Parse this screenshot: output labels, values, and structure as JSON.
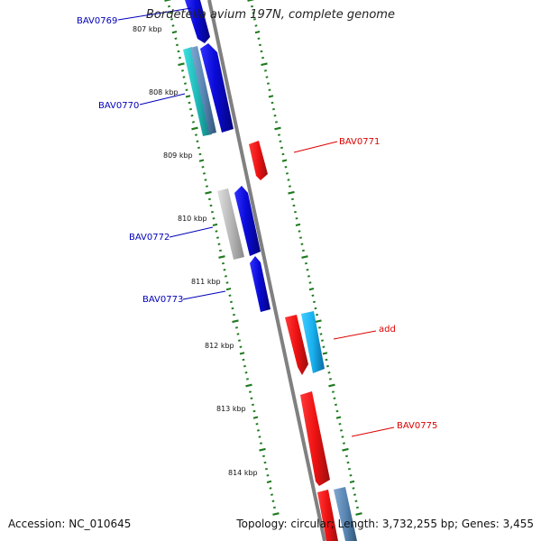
{
  "title": "Bordetella avium 197N, complete genome",
  "footer": {
    "accession": "Accession: NC_010645",
    "summary": "Topology: circular; Length: 3,732,255 bp; Genes: 3,455"
  },
  "colors": {
    "backbone": "#808080",
    "ticks": "#1f7a1f",
    "blue_gene": "#0a0ad8",
    "red_gene": "#ee1111",
    "cyan_gene": "#22c8c8",
    "light_blue_gene": "#18b0ee",
    "steel_gene": "#5a86b4",
    "grey_gene": "#b8b8b8",
    "blue_label": "#0000bb",
    "red_label": "#dd0000"
  },
  "scale_labels": [
    "807 kbp",
    "808 kbp",
    "809 kbp",
    "810 kbp",
    "811 kbp",
    "812 kbp",
    "813 kbp",
    "814 kbp"
  ],
  "gene_labels": [
    {
      "id": "bav0769",
      "text": "BAV0769",
      "color": "blue"
    },
    {
      "id": "bav0770",
      "text": "BAV0770",
      "color": "blue"
    },
    {
      "id": "bav0771",
      "text": "BAV0771",
      "color": "red"
    },
    {
      "id": "bav0772",
      "text": "BAV0772",
      "color": "blue"
    },
    {
      "id": "bav0773",
      "text": "BAV0773",
      "color": "blue"
    },
    {
      "id": "add",
      "text": "add",
      "color": "red"
    },
    {
      "id": "bav0775",
      "text": "BAV0775",
      "color": "red"
    }
  ]
}
